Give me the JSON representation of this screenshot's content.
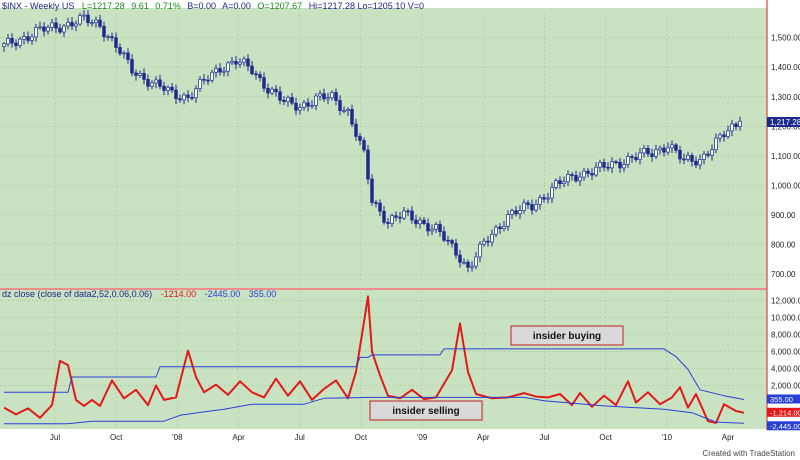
{
  "header": {
    "top": {
      "symbol": "$INX - Weekly US",
      "last": "L=1217.28",
      "chg": "9.61",
      "pct": "0.71%",
      "bid": "B=0.00",
      "ask": "A=0.00",
      "open": "O=1207.67",
      "rest": "Hi=1217.28   Lo=1205.10   V=0"
    },
    "bottom": {
      "title": "dz close (close of data2,52,0.06,0.06)",
      "v1": "-1214.00",
      "v2": "-2445.00",
      "v3": "355.00"
    }
  },
  "colors": {
    "panel_bg": "#c9e3c2",
    "grid": "#a9c9a0",
    "candle": "#1b2a8c",
    "indicator": "#e31818",
    "band": "#2840d6",
    "last_price_label": "#1b2a8c"
  },
  "annotations": {
    "buying": "insider buying",
    "selling": "insider selling"
  },
  "footer": "Created with TradeStation",
  "chart_data": [
    {
      "type": "candlestick",
      "series": [
        {
          "name": "$INX"
        }
      ],
      "x_tick_labels": [
        "Jul",
        "Oct",
        "'08",
        "Apr",
        "Jul",
        "Oct",
        "'09",
        "Apr",
        "Jul",
        "Oct",
        "'10",
        "Apr"
      ],
      "y_tick_labels": [
        "1,500.00",
        "1,400.00",
        "1,300.00",
        "1,200.00",
        "1,100.00",
        "1,000.00",
        "900.00",
        "800.00",
        "700.00"
      ],
      "ylim": [
        660,
        1580
      ],
      "last_value_label": "1,217.28",
      "close_anchors": [
        [
          0,
          1470
        ],
        [
          8,
          1520
        ],
        [
          14,
          1540
        ],
        [
          20,
          1560
        ],
        [
          24,
          1545
        ],
        [
          28,
          1470
        ],
        [
          32,
          1390
        ],
        [
          38,
          1340
        ],
        [
          42,
          1310
        ],
        [
          46,
          1300
        ],
        [
          50,
          1350
        ],
        [
          54,
          1400
        ],
        [
          58,
          1420
        ],
        [
          62,
          1390
        ],
        [
          66,
          1330
        ],
        [
          70,
          1280
        ],
        [
          74,
          1270
        ],
        [
          78,
          1290
        ],
        [
          82,
          1300
        ],
        [
          86,
          1250
        ],
        [
          90,
          1100
        ],
        [
          92,
          950
        ],
        [
          96,
          880
        ],
        [
          100,
          900
        ],
        [
          104,
          880
        ],
        [
          108,
          850
        ],
        [
          110,
          820
        ],
        [
          114,
          760
        ],
        [
          116,
          720
        ],
        [
          120,
          800
        ],
        [
          126,
          900
        ],
        [
          132,
          930
        ],
        [
          138,
          1000
        ],
        [
          144,
          1040
        ],
        [
          150,
          1060
        ],
        [
          156,
          1090
        ],
        [
          162,
          1110
        ],
        [
          166,
          1140
        ],
        [
          170,
          1080
        ],
        [
          174,
          1090
        ],
        [
          180,
          1170
        ],
        [
          184,
          1217.28
        ]
      ]
    },
    {
      "type": "line",
      "series": [
        {
          "name": "dz close",
          "points": [
            [
              0,
              -600
            ],
            [
              3,
              -1400
            ],
            [
              6,
              -700
            ],
            [
              9,
              -1800
            ],
            [
              12,
              -300
            ],
            [
              14,
              4900
            ],
            [
              16,
              4400
            ],
            [
              18,
              300
            ],
            [
              20,
              -400
            ],
            [
              22,
              300
            ],
            [
              24,
              -400
            ],
            [
              27,
              2600
            ],
            [
              30,
              500
            ],
            [
              33,
              1500
            ],
            [
              36,
              -300
            ],
            [
              38,
              2000
            ],
            [
              40,
              300
            ],
            [
              43,
              600
            ],
            [
              46,
              6100
            ],
            [
              48,
              3000
            ],
            [
              50,
              1200
            ],
            [
              53,
              2100
            ],
            [
              56,
              900
            ],
            [
              59,
              2500
            ],
            [
              62,
              1200
            ],
            [
              65,
              600
            ],
            [
              68,
              2800
            ],
            [
              71,
              800
            ],
            [
              74,
              2500
            ],
            [
              77,
              300
            ],
            [
              80,
              1600
            ],
            [
              83,
              2600
            ],
            [
              86,
              500
            ],
            [
              88,
              3600
            ],
            [
              90,
              9500
            ],
            [
              91,
              12500
            ],
            [
              92,
              6000
            ],
            [
              94,
              3200
            ],
            [
              96,
              800
            ],
            [
              99,
              500
            ],
            [
              102,
              1500
            ],
            [
              105,
              400
            ],
            [
              108,
              600
            ],
            [
              112,
              3800
            ],
            [
              114,
              9300
            ],
            [
              116,
              3600
            ],
            [
              118,
              1000
            ],
            [
              122,
              500
            ],
            [
              126,
              600
            ],
            [
              130,
              1100
            ],
            [
              133,
              700
            ],
            [
              136,
              600
            ],
            [
              139,
              1000
            ],
            [
              142,
              -300
            ],
            [
              144,
              1100
            ],
            [
              147,
              -500
            ],
            [
              150,
              800
            ],
            [
              153,
              -300
            ],
            [
              156,
              2500
            ],
            [
              158,
              0
            ],
            [
              161,
              1200
            ],
            [
              164,
              -200
            ],
            [
              167,
              600
            ],
            [
              169,
              1800
            ],
            [
              171,
              -600
            ],
            [
              173,
              1000
            ],
            [
              176,
              -2200
            ],
            [
              178,
              -2400
            ],
            [
              180,
              -200
            ],
            [
              183,
              -1000
            ],
            [
              185,
              -1214
            ]
          ]
        },
        {
          "name": "upper band",
          "points": [
            [
              0,
              1200
            ],
            [
              16,
              1200
            ],
            [
              17,
              3000
            ],
            [
              38,
              3000
            ],
            [
              39,
              4200
            ],
            [
              88,
              4200
            ],
            [
              89,
              5300
            ],
            [
              91,
              5300
            ],
            [
              92,
              5600
            ],
            [
              109,
              5600
            ],
            [
              110,
              6300
            ],
            [
              165,
              6300
            ],
            [
              168,
              5400
            ],
            [
              171,
              3900
            ],
            [
              174,
              1500
            ],
            [
              180,
              800
            ],
            [
              185,
              355
            ]
          ]
        },
        {
          "name": "lower band",
          "points": [
            [
              0,
              -2500
            ],
            [
              16,
              -2500
            ],
            [
              22,
              -2200
            ],
            [
              40,
              -2200
            ],
            [
              44,
              -1500
            ],
            [
              50,
              -1100
            ],
            [
              55,
              -800
            ],
            [
              62,
              -200
            ],
            [
              75,
              -200
            ],
            [
              80,
              500
            ],
            [
              92,
              600
            ],
            [
              130,
              600
            ],
            [
              135,
              200
            ],
            [
              150,
              -400
            ],
            [
              165,
              -800
            ],
            [
              172,
              -1200
            ],
            [
              178,
              -2300
            ],
            [
              185,
              -2445
            ]
          ]
        }
      ],
      "y_tick_labels": [
        "12,000.00",
        "10,000.00",
        "8,000.00",
        "6,000.00",
        "4,000.00",
        "2,000.00"
      ],
      "ylim": [
        -3000,
        13000
      ],
      "value_labels": [
        "355.00",
        "-1,214.00",
        "-2,445.00"
      ]
    }
  ]
}
